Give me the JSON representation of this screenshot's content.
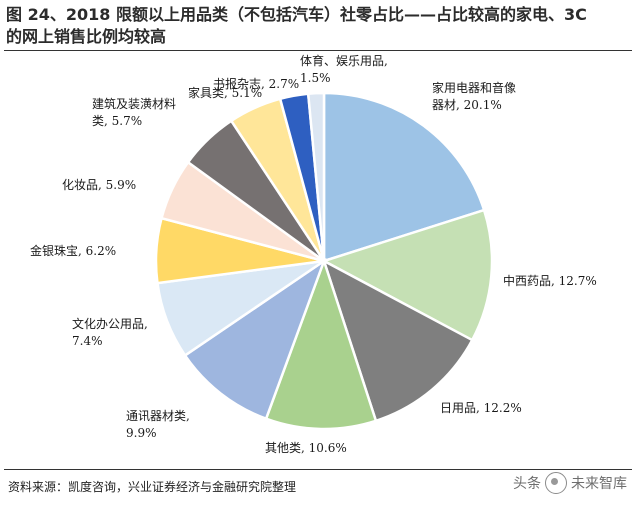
{
  "title_line1": "图 24、2018 限额以上用品类（不包括汽车）社零占比——占比较高的家电、3C",
  "title_line2": "的网上销售比例均较高",
  "source": "资料来源：凯度咨询，兴业证券经济与金融研究院整理",
  "watermark_a": "头条",
  "watermark_b": "未来智库",
  "chart_data": {
    "type": "pie",
    "title": "",
    "start_angle_deg": 0,
    "direction": "clockwise",
    "slices": [
      {
        "label": "家用电器和音像器材",
        "label_lines": [
          "家用电器和音像",
          "器材, 20.1%"
        ],
        "value": 20.1,
        "color": "#9dc3e6"
      },
      {
        "label": "中西药品",
        "label_lines": [
          "中西药品, 12.7%"
        ],
        "value": 12.7,
        "color": "#c5e0b4"
      },
      {
        "label": "日用品",
        "label_lines": [
          "日用品, 12.2%"
        ],
        "value": 12.2,
        "color": "#7f7f7f"
      },
      {
        "label": "其他类",
        "label_lines": [
          "其他类, 10.6%"
        ],
        "value": 10.6,
        "color": "#a9d18e"
      },
      {
        "label": "通讯器材类",
        "label_lines": [
          "通讯器材类,",
          "9.9%"
        ],
        "value": 9.9,
        "color": "#9eb6df"
      },
      {
        "label": "文化办公用品",
        "label_lines": [
          "文化办公用品,",
          "7.4%"
        ],
        "value": 7.4,
        "color": "#dae8f5"
      },
      {
        "label": "金银珠宝",
        "label_lines": [
          "金银珠宝, 6.2%"
        ],
        "value": 6.2,
        "color": "#ffd966"
      },
      {
        "label": "化妆品",
        "label_lines": [
          "化妆品, 5.9%"
        ],
        "value": 5.9,
        "color": "#fbe2d5"
      },
      {
        "label": "建筑及装潢材料类",
        "label_lines": [
          "建筑及装潢材料",
          "类, 5.7%"
        ],
        "value": 5.7,
        "color": "#767171"
      },
      {
        "label": "家具类",
        "label_lines": [
          "家具类, 5.1%"
        ],
        "value": 5.1,
        "color": "#ffe699"
      },
      {
        "label": "书报杂志",
        "label_lines": [
          "书报杂志, 2.7%"
        ],
        "value": 2.7,
        "color": "#2e5fc1"
      },
      {
        "label": "体育、娱乐用品",
        "label_lines": [
          "体育、娱乐用品,",
          "1.5%"
        ],
        "value": 1.5,
        "color": "#dce6f2"
      }
    ]
  }
}
